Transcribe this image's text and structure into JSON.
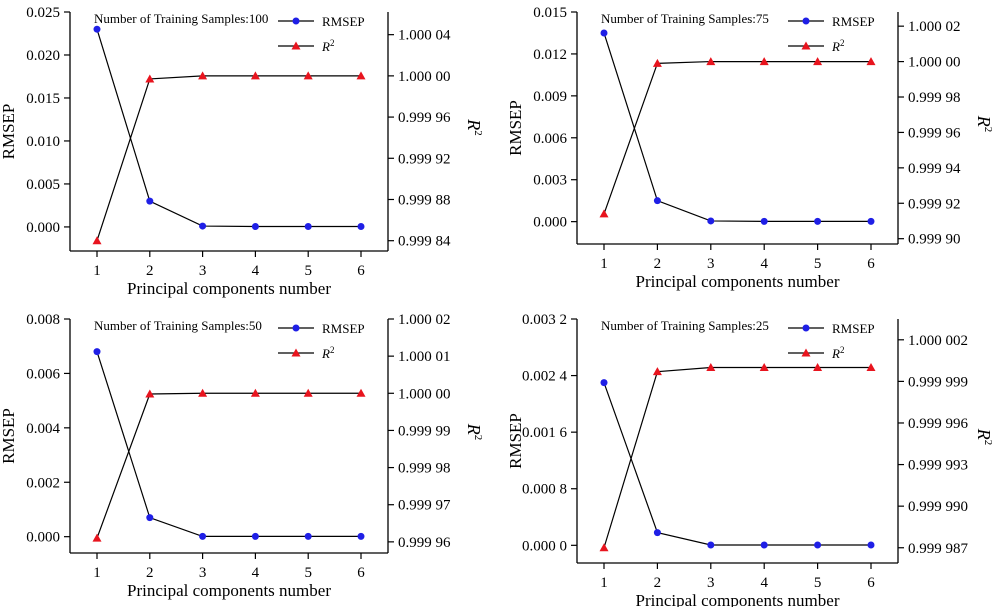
{
  "figure": {
    "xlabel": "Principal components number",
    "ylabel_left": "RMSEP",
    "ylabel_right": "R",
    "ylabel_right_sup": "2",
    "legend": {
      "rmsep": "RMSEP",
      "r2": "R",
      "r2_sup": "2"
    }
  },
  "colors": {
    "rmsep": "#1f1fe6",
    "r2": "#e8141e",
    "line": "#000000"
  },
  "chart_data": [
    {
      "type": "line",
      "title": "Number of Training Samples:100",
      "x": [
        1,
        2,
        3,
        4,
        5,
        6
      ],
      "left_ticks": [
        "0.000",
        "0.005",
        "0.010",
        "0.015",
        "0.020",
        "0.025"
      ],
      "left_tick_values": [
        0,
        0.005,
        0.01,
        0.015,
        0.02,
        0.025
      ],
      "right_ticks": [
        "0.999 84",
        "0.999 88",
        "0.999 92",
        "0.999 96",
        "1.000 00",
        "1.000 04"
      ],
      "right_tick_values": [
        0.99984,
        0.99988,
        0.99992,
        0.99996,
        1.0,
        1.00004
      ],
      "ylim_left": [
        -0.0028,
        0.025
      ],
      "ylim_right": [
        0.99983,
        1.000062
      ],
      "series": [
        {
          "name": "RMSEP",
          "axis": "left",
          "values": [
            0.023,
            0.003,
            0.0001,
            5e-05,
            5e-05,
            5e-05
          ]
        },
        {
          "name": "R2",
          "axis": "right",
          "values": [
            0.99984,
            0.999997,
            1.0,
            1.0,
            1.0,
            1.0
          ]
        }
      ]
    },
    {
      "type": "line",
      "title": "Number of Training Samples:75",
      "x": [
        1,
        2,
        3,
        4,
        5,
        6
      ],
      "left_ticks": [
        "0.000",
        "0.003",
        "0.006",
        "0.009",
        "0.012",
        "0.015"
      ],
      "left_tick_values": [
        0,
        0.003,
        0.006,
        0.009,
        0.012,
        0.015
      ],
      "right_ticks": [
        "0.999 90",
        "0.999 92",
        "0.999 94",
        "0.999 96",
        "0.999 98",
        "1.000 00",
        "1.000 02"
      ],
      "right_tick_values": [
        0.9999,
        0.99992,
        0.99994,
        0.99996,
        0.99998,
        1.0,
        1.00002
      ],
      "ylim_left": [
        -0.0016,
        0.015
      ],
      "ylim_right": [
        0.999897,
        1.000028
      ],
      "series": [
        {
          "name": "RMSEP",
          "axis": "left",
          "values": [
            0.0135,
            0.0015,
            5e-05,
            2e-05,
            2e-05,
            2e-05
          ]
        },
        {
          "name": "R2",
          "axis": "right",
          "values": [
            0.999914,
            0.999999,
            1.0,
            1.0,
            1.0,
            1.0
          ]
        }
      ]
    },
    {
      "type": "line",
      "title": "Number of Training Samples:50",
      "x": [
        1,
        2,
        3,
        4,
        5,
        6
      ],
      "left_ticks": [
        "0.000",
        "0.002",
        "0.004",
        "0.006",
        "0.008"
      ],
      "left_tick_values": [
        0,
        0.002,
        0.004,
        0.006,
        0.008
      ],
      "right_ticks": [
        "0.999 96",
        "0.999 97",
        "0.999 98",
        "0.999 99",
        "1.000 00",
        "1.000 01",
        "1.000 02"
      ],
      "right_tick_values": [
        0.99996,
        0.99997,
        0.99998,
        0.99999,
        1.0,
        1.00001,
        1.00002
      ],
      "ylim_left": [
        -0.0006,
        0.008
      ],
      "ylim_right": [
        0.999957,
        1.00002
      ],
      "series": [
        {
          "name": "RMSEP",
          "axis": "left",
          "values": [
            0.0068,
            0.0007,
            1e-05,
            1e-05,
            1e-05,
            1e-05
          ]
        },
        {
          "name": "R2",
          "axis": "right",
          "values": [
            0.999961,
            0.9999998,
            1.0,
            1.0,
            1.0,
            1.0
          ]
        }
      ]
    },
    {
      "type": "line",
      "title": "Number of Training Samples:25",
      "x": [
        1,
        2,
        3,
        4,
        5,
        6
      ],
      "left_ticks": [
        "0.000 0",
        "0.000 8",
        "0.001 6",
        "0.002 4",
        "0.003 2"
      ],
      "left_tick_values": [
        0,
        0.0008,
        0.0016,
        0.0024,
        0.0032
      ],
      "right_ticks": [
        "0.999 987",
        "0.999 990",
        "0.999 993",
        "0.999 996",
        "0.999 999",
        "1.000 002"
      ],
      "right_tick_values": [
        0.999987,
        0.99999,
        0.999993,
        0.999996,
        0.999999,
        1.000002
      ],
      "ylim_left": [
        -0.00025,
        0.0032
      ],
      "ylim_right": [
        0.9999859,
        1.0000035
      ],
      "series": [
        {
          "name": "RMSEP",
          "axis": "left",
          "values": [
            0.0023,
            0.00018,
            5e-06,
            5e-06,
            5e-06,
            5e-06
          ]
        },
        {
          "name": "R2",
          "axis": "right",
          "values": [
            0.999987,
            0.9999997,
            1.0,
            1.0,
            1.0,
            1.0
          ]
        }
      ]
    }
  ]
}
